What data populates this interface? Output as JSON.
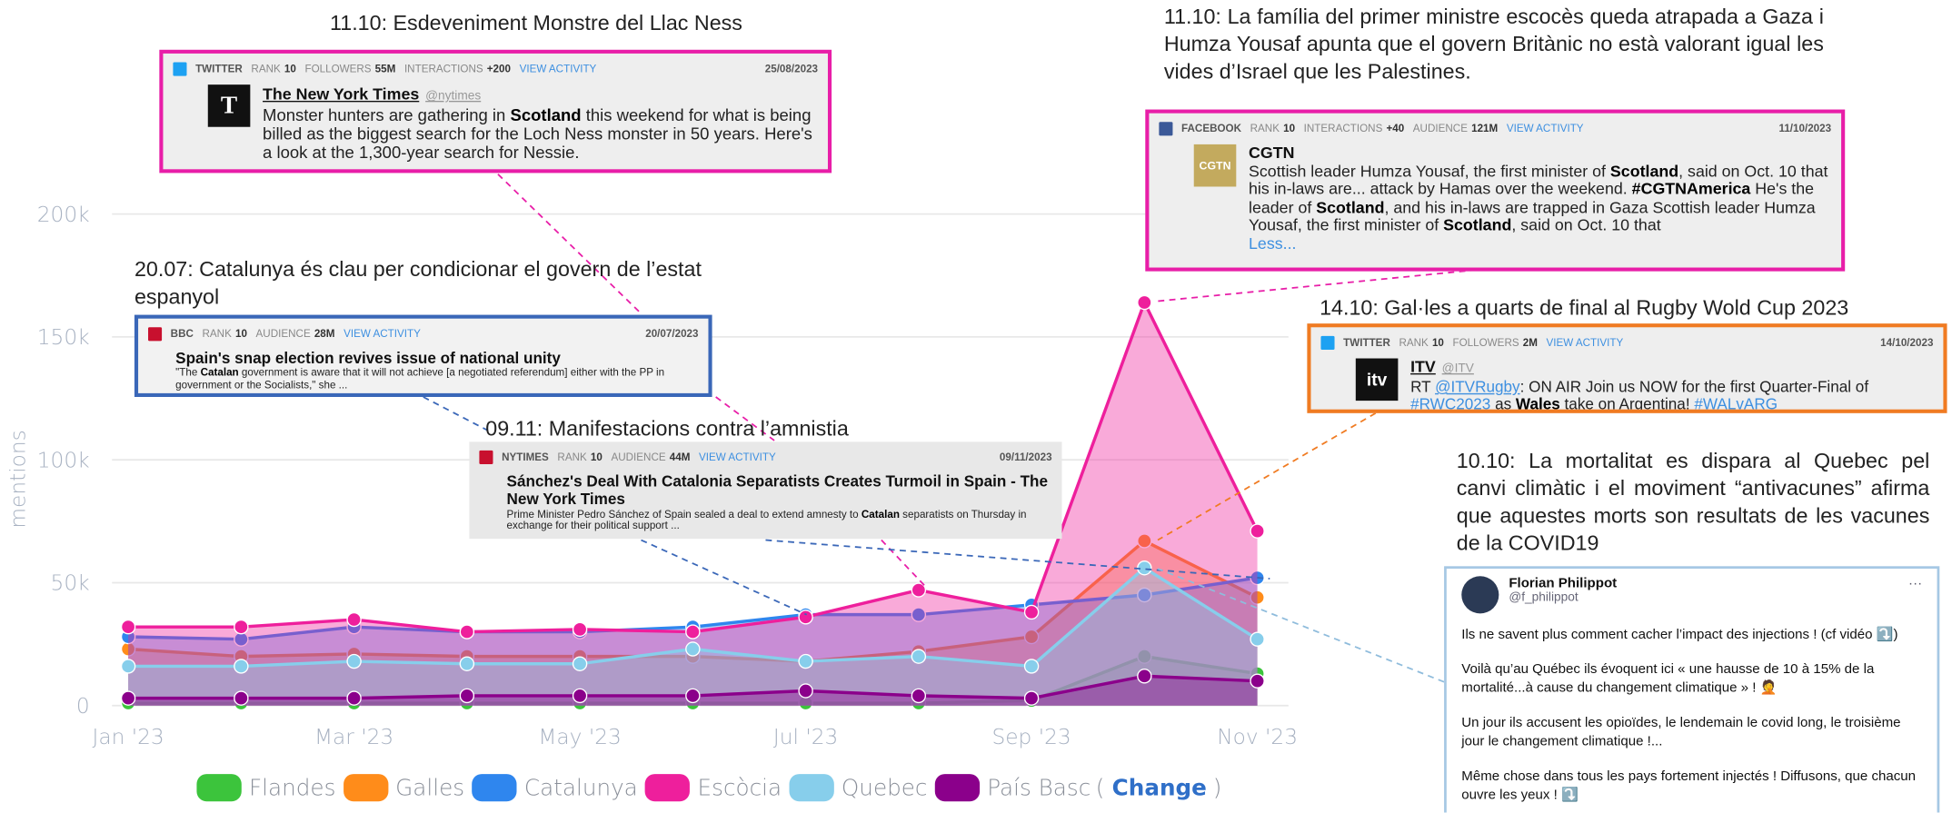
{
  "chart_data": {
    "type": "area",
    "y_label": "mentions",
    "categories": [
      "Jan '23",
      null,
      "Mar '23",
      null,
      "May '23",
      null,
      "Jul '23",
      null,
      "Sep '23",
      null,
      "Nov '23"
    ],
    "ylim": [
      0,
      200000
    ],
    "yticks": [
      0,
      {
        "value": 50000,
        "label": "50k"
      },
      {
        "value": 100000,
        "label": "100k"
      },
      {
        "value": 150000,
        "label": "150k"
      },
      {
        "value": 200000,
        "label": "200k"
      }
    ],
    "grid": true,
    "series": [
      {
        "name": "Flandes",
        "color": "#3cc43c",
        "values": [
          1000,
          1000,
          1000,
          1000,
          1000,
          1000,
          1000,
          1000,
          2000,
          20000,
          13000
        ]
      },
      {
        "name": "Galles",
        "color": "#ff8c1a",
        "values": [
          23000,
          20000,
          21000,
          20000,
          20000,
          20000,
          18000,
          22000,
          28000,
          67000,
          44000
        ]
      },
      {
        "name": "Catalunya",
        "color": "#2f86ee",
        "values": [
          28000,
          27000,
          32000,
          30000,
          30000,
          32000,
          37000,
          37000,
          41000,
          45000,
          52000
        ]
      },
      {
        "name": "Escòcia",
        "color": "#ee1f9c",
        "values": [
          32000,
          32000,
          35000,
          30000,
          31000,
          30000,
          36000,
          47000,
          38000,
          164000,
          71000
        ]
      },
      {
        "name": "Quebec",
        "color": "#87ceeb",
        "values": [
          16000,
          16000,
          18000,
          17000,
          17000,
          23000,
          18000,
          20000,
          16000,
          56000,
          27000
        ]
      },
      {
        "name": "País Basc",
        "color": "#8b008b",
        "values": [
          3000,
          3000,
          3000,
          4000,
          4000,
          4000,
          6000,
          4000,
          3000,
          12000,
          10000
        ]
      }
    ],
    "legend_action": {
      "open": "(",
      "label": "Change",
      "close": ")"
    },
    "annotations": [
      {
        "headline": "11.10: Esdeveniment Monstre del Llac Ness",
        "card": {
          "platform": "TWITTER",
          "meta": [
            {
              "label": "RANK",
              "value": "10"
            },
            {
              "label": "FOLLOWERS",
              "value": "55M"
            },
            {
              "label": "INTERACTIONS",
              "value": "+200"
            }
          ],
          "action": "VIEW ACTIVITY",
          "date": "25/08/2023",
          "logo": "T",
          "author": "The New York Times",
          "handle": "@nytimes",
          "body": [
            {
              "text": "Monster hunters are gathering in "
            },
            {
              "text": "Scotland",
              "style": "bold"
            },
            {
              "text": " this weekend for what is being billed as the biggest search for the Loch Ness monster in 50 years. Here's a look at the 1,300-year search for Nessie."
            }
          ]
        }
      },
      {
        "headline": "20.07: Catalunya és clau per condicionar el govern de l’estat espanyol",
        "card": {
          "platform": "BBC",
          "meta": [
            {
              "label": "RANK",
              "value": "10"
            },
            {
              "label": "AUDIENCE",
              "value": "28M"
            }
          ],
          "action": "VIEW ACTIVITY",
          "date": "20/07/2023",
          "title": "Spain's snap election revives issue of national unity",
          "body": [
            {
              "text": "\"The "
            },
            {
              "text": "Catalan",
              "style": "bold"
            },
            {
              "text": " government is aware that it will not achieve [a negotiated referendum] either with the PP in government or the Socialists,\" she ..."
            }
          ]
        }
      },
      {
        "headline": "09.11: Manifestacions contra l’amnistia",
        "card": {
          "platform": "NYTIMES",
          "meta": [
            {
              "label": "RANK",
              "value": "10"
            },
            {
              "label": "AUDIENCE",
              "value": "44M"
            }
          ],
          "action": "VIEW ACTIVITY",
          "date": "09/11/2023",
          "title": "Sánchez's Deal With Catalonia Separatists Creates Turmoil in Spain - The New York Times",
          "body": [
            {
              "text": "Prime Minister Pedro Sánchez of Spain sealed a deal to extend amnesty to "
            },
            {
              "text": "Catalan",
              "style": "bold"
            },
            {
              "text": " separatists on Thursday in exchange for their political support ..."
            }
          ]
        }
      },
      {
        "headline": "11.10: La família del primer ministre escocès queda atrapada a Gaza i Humza Yousaf apunta que el govern Britànic no està valorant igual les vides d’Israel que les Palestines.",
        "card": {
          "platform": "FACEBOOK",
          "meta": [
            {
              "label": "RANK",
              "value": "10"
            },
            {
              "label": "INTERACTIONS",
              "value": "+40"
            },
            {
              "label": "AUDIENCE",
              "value": "121M"
            }
          ],
          "action": "VIEW ACTIVITY",
          "date": "11/10/2023",
          "logo": "CGTN",
          "author": "CGTN",
          "body": [
            {
              "text": "Scottish leader Humza Yousaf, the first minister of "
            },
            {
              "text": "Scotland",
              "style": "bold"
            },
            {
              "text": ", said on Oct. 10 that his in-laws are... attack by Hamas over the weekend. "
            },
            {
              "text": "#CGTNAmerica",
              "style": "bold"
            },
            {
              "text": " He's the leader of "
            },
            {
              "text": "Scotland",
              "style": "bold"
            },
            {
              "text": ", and his in-laws are trapped in Gaza Scottish leader Humza Yousaf, the first minister of "
            },
            {
              "text": "Scotland",
              "style": "bold"
            },
            {
              "text": ", said on Oct. 10 that"
            }
          ],
          "more": "Less..."
        }
      },
      {
        "headline": "14.10: Gal·les a quarts de final al Rugby Wold Cup 2023",
        "card": {
          "platform": "TWITTER",
          "meta": [
            {
              "label": "RANK",
              "value": "10"
            },
            {
              "label": "FOLLOWERS",
              "value": "2M"
            }
          ],
          "action": "VIEW ACTIVITY",
          "date": "14/10/2023",
          "logo": "itv",
          "author": "ITV",
          "handle": "@ITV",
          "body": [
            {
              "text": "RT "
            },
            {
              "text": "@ITVRugby",
              "style": "link"
            },
            {
              "text": ": ON AIR Join us NOW for the first Quarter-Final of "
            },
            {
              "text": "#RWC2023",
              "style": "link"
            },
            {
              "text": " as "
            },
            {
              "text": "Wales",
              "style": "bold"
            },
            {
              "text": " take on Argentina! "
            },
            {
              "text": "#WALvARG",
              "style": "link"
            }
          ]
        }
      },
      {
        "headline": "10.10: La mortalitat es dispara al Quebec pel canvi climàtic i el moviment “antivacunes” afirma que aquestes morts son resultats de les vacunes de la COVID19",
        "tweet": {
          "author": "Florian Philippot",
          "handle": "@f_philippot",
          "menu": "···",
          "paragraphs": [
            "Ils ne savent plus comment cacher l’impact des injections ! (cf vidéo ⤵️)",
            "Voilà qu’au Québec ils évoquent ici « une hausse de 10 à 15% de la mortalité...à cause du changement climatique » ! 🤦",
            "Un jour ils accusent les opioïdes, le lendemain le covid long, le troisième jour le changement climatique !...",
            "Même chose dans tous les pays fortement injectés ! Diffusons, que chacun ouvre les yeux ! ⤵️"
          ]
        }
      }
    ]
  }
}
